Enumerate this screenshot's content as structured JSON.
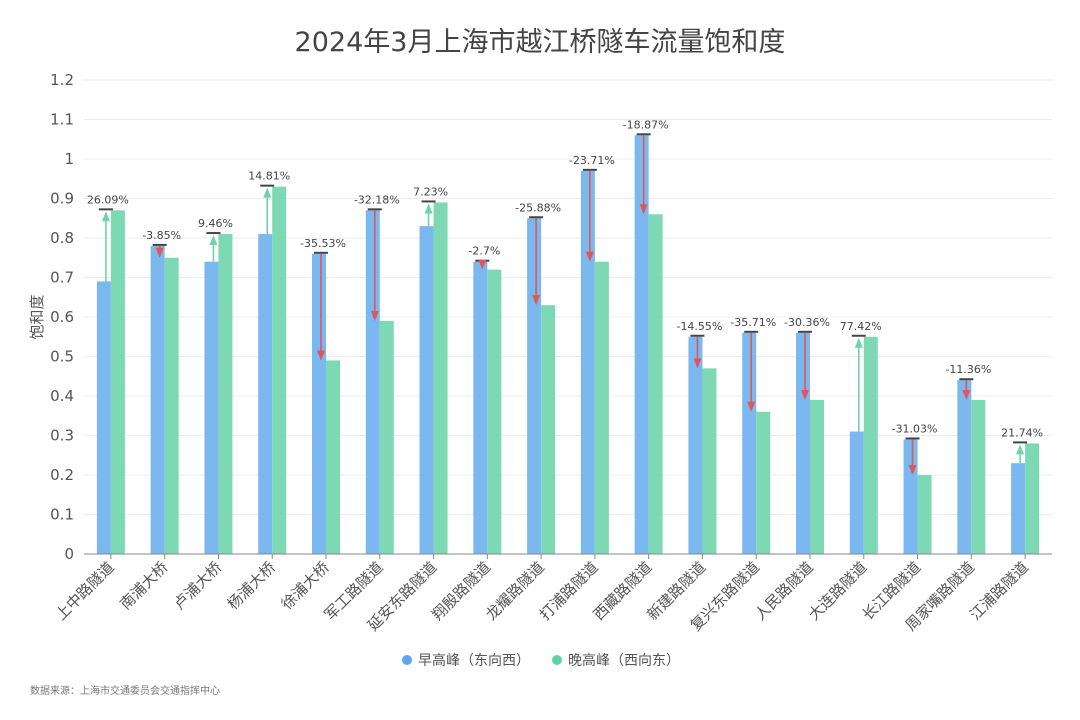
{
  "chart_data": {
    "type": "bar",
    "title": "2024年3月上海市越江桥隧车流量饱和度",
    "xlabel": "",
    "ylabel": "饱和度",
    "ylim": [
      0,
      1.2
    ],
    "yticks": [
      "0",
      "0.1",
      "0.2",
      "0.3",
      "0.4",
      "0.5",
      "0.6",
      "0.7",
      "0.8",
      "0.9",
      "1",
      "1.1",
      "1.2"
    ],
    "grid": true,
    "legend_position": "bottom-center",
    "categories": [
      "上中路隧道",
      "南浦大桥",
      "卢浦大桥",
      "杨浦大桥",
      "徐浦大桥",
      "军工路隧道",
      "延安东路隧道",
      "翔殷路隧道",
      "龙耀路隧道",
      "打浦路隧道",
      "西藏路隧道",
      "新建路隧道",
      "复兴东路隧道",
      "人民路隧道",
      "大连路隧道",
      "长江路隧道",
      "周家嘴路隧道",
      "江浦路隧道"
    ],
    "series": [
      {
        "name": "早高峰（东向西）",
        "color": "#7ab8ef",
        "values": [
          0.69,
          0.78,
          0.74,
          0.81,
          0.76,
          0.87,
          0.83,
          0.74,
          0.85,
          0.97,
          1.06,
          0.55,
          0.56,
          0.56,
          0.31,
          0.29,
          0.44,
          0.23
        ]
      },
      {
        "name": "晚高峰（西向东）",
        "color": "#7dd9b4",
        "values": [
          0.87,
          0.75,
          0.81,
          0.93,
          0.49,
          0.59,
          0.89,
          0.72,
          0.63,
          0.74,
          0.86,
          0.47,
          0.36,
          0.39,
          0.55,
          0.2,
          0.39,
          0.28
        ]
      }
    ],
    "change_labels": [
      "26.09%",
      "-3.85%",
      "9.46%",
      "14.81%",
      "-35.53%",
      "-32.18%",
      "7.23%",
      "-2.7%",
      "-25.88%",
      "-23.71%",
      "-18.87%",
      "-14.55%",
      "-35.71%",
      "-30.36%",
      "77.42%",
      "-31.03%",
      "-11.36%",
      "21.74%"
    ],
    "colors": {
      "increase_arrow": "#6fd3aa",
      "decrease_arrow": "#e0575a",
      "cap": "#444444"
    }
  },
  "legend": {
    "morning_label": "早高峰（东向西）",
    "evening_label": "晚高峰（西向东）",
    "morning_dot_color": "#5aa9ee",
    "evening_dot_color": "#5ed2a4"
  },
  "footer": {
    "source": "数据来源：上海市交通委员会交通指挥中心"
  }
}
